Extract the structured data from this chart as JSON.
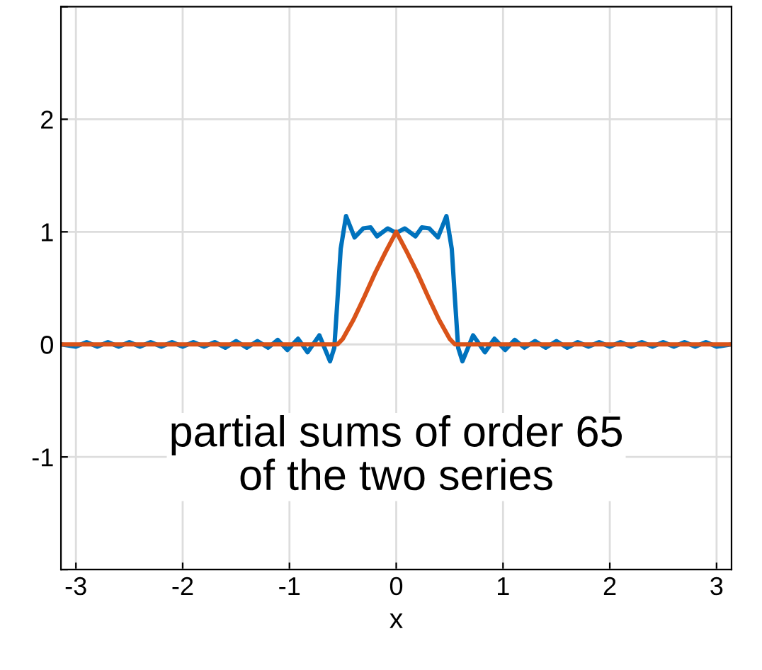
{
  "chart_data": {
    "type": "line",
    "xlabel": "x",
    "xlim": [
      -3.14,
      3.14
    ],
    "ylim": [
      -2,
      3
    ],
    "xticks": [
      -3,
      -2,
      -1,
      0,
      1,
      2,
      3
    ],
    "yticks": [
      {
        "value": -2,
        "label": null
      },
      -1,
      0,
      1,
      2,
      {
        "value": 3,
        "label": null
      }
    ],
    "grid": true,
    "legend": false,
    "annotations": [
      "partial sums of order 65\nof the two series"
    ],
    "series": [
      {
        "color": "#0072bd",
        "x": [
          -3.14,
          -3.0,
          -2.9,
          -2.8,
          -2.7,
          -2.6,
          -2.5,
          -2.4,
          -2.3,
          -2.2,
          -2.1,
          -2.0,
          -1.9,
          -1.8,
          -1.7,
          -1.6,
          -1.5,
          -1.4,
          -1.3,
          -1.2,
          -1.11,
          -1.02,
          -0.92,
          -0.83,
          -0.72,
          -0.62,
          -0.58,
          -0.55,
          -0.52,
          -0.47,
          -0.39,
          -0.31,
          -0.24,
          -0.18,
          -0.08,
          0,
          0.08,
          0.18,
          0.24,
          0.31,
          0.39,
          0.47,
          0.52,
          0.55,
          0.58,
          0.62,
          0.72,
          0.83,
          0.92,
          1.02,
          1.11,
          1.2,
          1.3,
          1.4,
          1.5,
          1.6,
          1.7,
          1.8,
          1.9,
          2.0,
          2.1,
          2.2,
          2.3,
          2.4,
          2.5,
          2.6,
          2.7,
          2.8,
          2.9,
          3.0,
          3.14
        ],
        "values": [
          0,
          -0.02,
          0.02,
          -0.02,
          0.02,
          -0.02,
          0.02,
          -0.02,
          0.02,
          -0.02,
          0.02,
          -0.02,
          0.02,
          -0.02,
          0.02,
          -0.03,
          0.03,
          -0.03,
          0.03,
          -0.03,
          0.04,
          -0.05,
          0.05,
          -0.07,
          0.08,
          -0.15,
          -0.03,
          0.4,
          0.85,
          1.14,
          0.95,
          1.03,
          1.04,
          0.96,
          1.03,
          0.99,
          1.03,
          0.96,
          1.04,
          1.03,
          0.95,
          1.14,
          0.85,
          0.4,
          -0.03,
          -0.15,
          0.08,
          -0.07,
          0.05,
          -0.05,
          0.04,
          -0.03,
          0.03,
          -0.03,
          0.03,
          -0.03,
          0.02,
          -0.02,
          0.02,
          -0.02,
          0.02,
          -0.02,
          0.02,
          -0.02,
          0.02,
          -0.02,
          0.02,
          -0.02,
          0.02,
          -0.02,
          0
        ]
      },
      {
        "color": "#d95319",
        "x": [
          -3.14,
          -0.55,
          -0.5,
          -0.4,
          -0.3,
          -0.2,
          -0.1,
          0,
          0.1,
          0.2,
          0.3,
          0.4,
          0.5,
          0.55,
          3.14
        ],
        "values": [
          0,
          0,
          0.05,
          0.22,
          0.42,
          0.63,
          0.82,
          1.0,
          0.82,
          0.63,
          0.42,
          0.22,
          0.05,
          0,
          0
        ]
      }
    ]
  }
}
